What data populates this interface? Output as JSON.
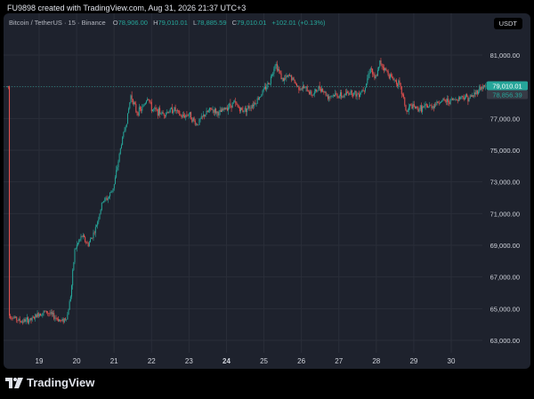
{
  "credit": "FU9898 created with TradingView.com, Aug 31, 2026 21:37 UTC+3",
  "legend": {
    "symbol": "Bitcoin / TetherUS · 15 · Binance",
    "open_label": "O",
    "open_value": "78,906.00",
    "high_label": "H",
    "high_value": "79,010.01",
    "low_label": "L",
    "low_value": "78,885.59",
    "close_label": "C",
    "close_value": "79,010.01",
    "change": "+102.01 (+0.13%)"
  },
  "currency": "USDT",
  "brand": "TradingView",
  "colors": {
    "up": "#26a69a",
    "down": "#ef5350",
    "background": "#1e222d",
    "grid": "#2a2e39",
    "price_line": "#26a69a",
    "reference_badge": "#363a45"
  },
  "price_badges": {
    "last": "79,010.01",
    "reference": "78,856.39"
  },
  "chart_data": {
    "type": "candlestick",
    "interval": "15",
    "x_tick_labels": [
      "19",
      "20",
      "21",
      "22",
      "23",
      "24",
      "25",
      "26",
      "27",
      "28",
      "29",
      "30"
    ],
    "x_bold_label": "24",
    "y_tick_labels": [
      "63,000.00",
      "65,000.00",
      "67,000.00",
      "69,000.00",
      "71,000.00",
      "73,000.00",
      "75,000.00",
      "77,000.00",
      "79,000.00",
      "81,000.00"
    ],
    "y_ticks": [
      63000,
      65000,
      67000,
      69000,
      71000,
      73000,
      75000,
      77000,
      79000,
      81000
    ],
    "ylim": [
      62000,
      82000
    ],
    "xlim": [
      18.15,
      30.95
    ],
    "last_price": 79010.01,
    "reference_price": 78856.39,
    "close_path": [
      [
        18.2,
        64.6
      ],
      [
        18.5,
        64.2
      ],
      [
        18.8,
        64.3
      ],
      [
        19.0,
        64.7
      ],
      [
        19.2,
        64.8
      ],
      [
        19.4,
        64.5
      ],
      [
        19.6,
        64.2
      ],
      [
        19.75,
        64.5
      ],
      [
        19.85,
        66.0
      ],
      [
        19.95,
        68.7
      ],
      [
        20.05,
        69.2
      ],
      [
        20.15,
        69.6
      ],
      [
        20.3,
        69.0
      ],
      [
        20.5,
        70.0
      ],
      [
        20.7,
        71.8
      ],
      [
        20.85,
        72.0
      ],
      [
        21.0,
        72.8
      ],
      [
        21.2,
        75.5
      ],
      [
        21.35,
        77.0
      ],
      [
        21.45,
        78.5
      ],
      [
        21.6,
        77.4
      ],
      [
        21.75,
        77.6
      ],
      [
        21.9,
        78.4
      ],
      [
        22.0,
        77.6
      ],
      [
        22.3,
        77.3
      ],
      [
        22.6,
        77.6
      ],
      [
        22.8,
        77.1
      ],
      [
        23.0,
        77.3
      ],
      [
        23.2,
        76.6
      ],
      [
        23.4,
        77.2
      ],
      [
        23.6,
        77.6
      ],
      [
        23.8,
        77.3
      ],
      [
        24.0,
        77.7
      ],
      [
        24.2,
        78.0
      ],
      [
        24.4,
        77.5
      ],
      [
        24.6,
        77.7
      ],
      [
        24.8,
        78.1
      ],
      [
        25.0,
        78.8
      ],
      [
        25.15,
        79.3
      ],
      [
        25.3,
        80.5
      ],
      [
        25.4,
        80.0
      ],
      [
        25.5,
        79.4
      ],
      [
        25.7,
        79.7
      ],
      [
        25.9,
        79.0
      ],
      [
        26.1,
        78.9
      ],
      [
        26.3,
        78.5
      ],
      [
        26.5,
        79.0
      ],
      [
        26.7,
        78.4
      ],
      [
        26.9,
        78.5
      ],
      [
        27.1,
        78.4
      ],
      [
        27.3,
        78.7
      ],
      [
        27.5,
        78.5
      ],
      [
        27.7,
        79.0
      ],
      [
        27.85,
        80.3
      ],
      [
        27.95,
        79.4
      ],
      [
        28.05,
        80.0
      ],
      [
        28.1,
        80.6
      ],
      [
        28.2,
        80.2
      ],
      [
        28.4,
        79.6
      ],
      [
        28.6,
        79.2
      ],
      [
        28.75,
        78.1
      ],
      [
        28.8,
        77.3
      ],
      [
        28.9,
        77.8
      ],
      [
        29.1,
        77.6
      ],
      [
        29.3,
        77.7
      ],
      [
        29.5,
        77.8
      ],
      [
        29.7,
        78.1
      ],
      [
        29.9,
        78.1
      ],
      [
        30.1,
        78.2
      ],
      [
        30.3,
        78.4
      ],
      [
        30.5,
        78.3
      ],
      [
        30.65,
        78.6
      ],
      [
        30.75,
        78.9
      ],
      [
        30.85,
        79.0
      ],
      [
        30.95,
        79.01
      ]
    ]
  }
}
